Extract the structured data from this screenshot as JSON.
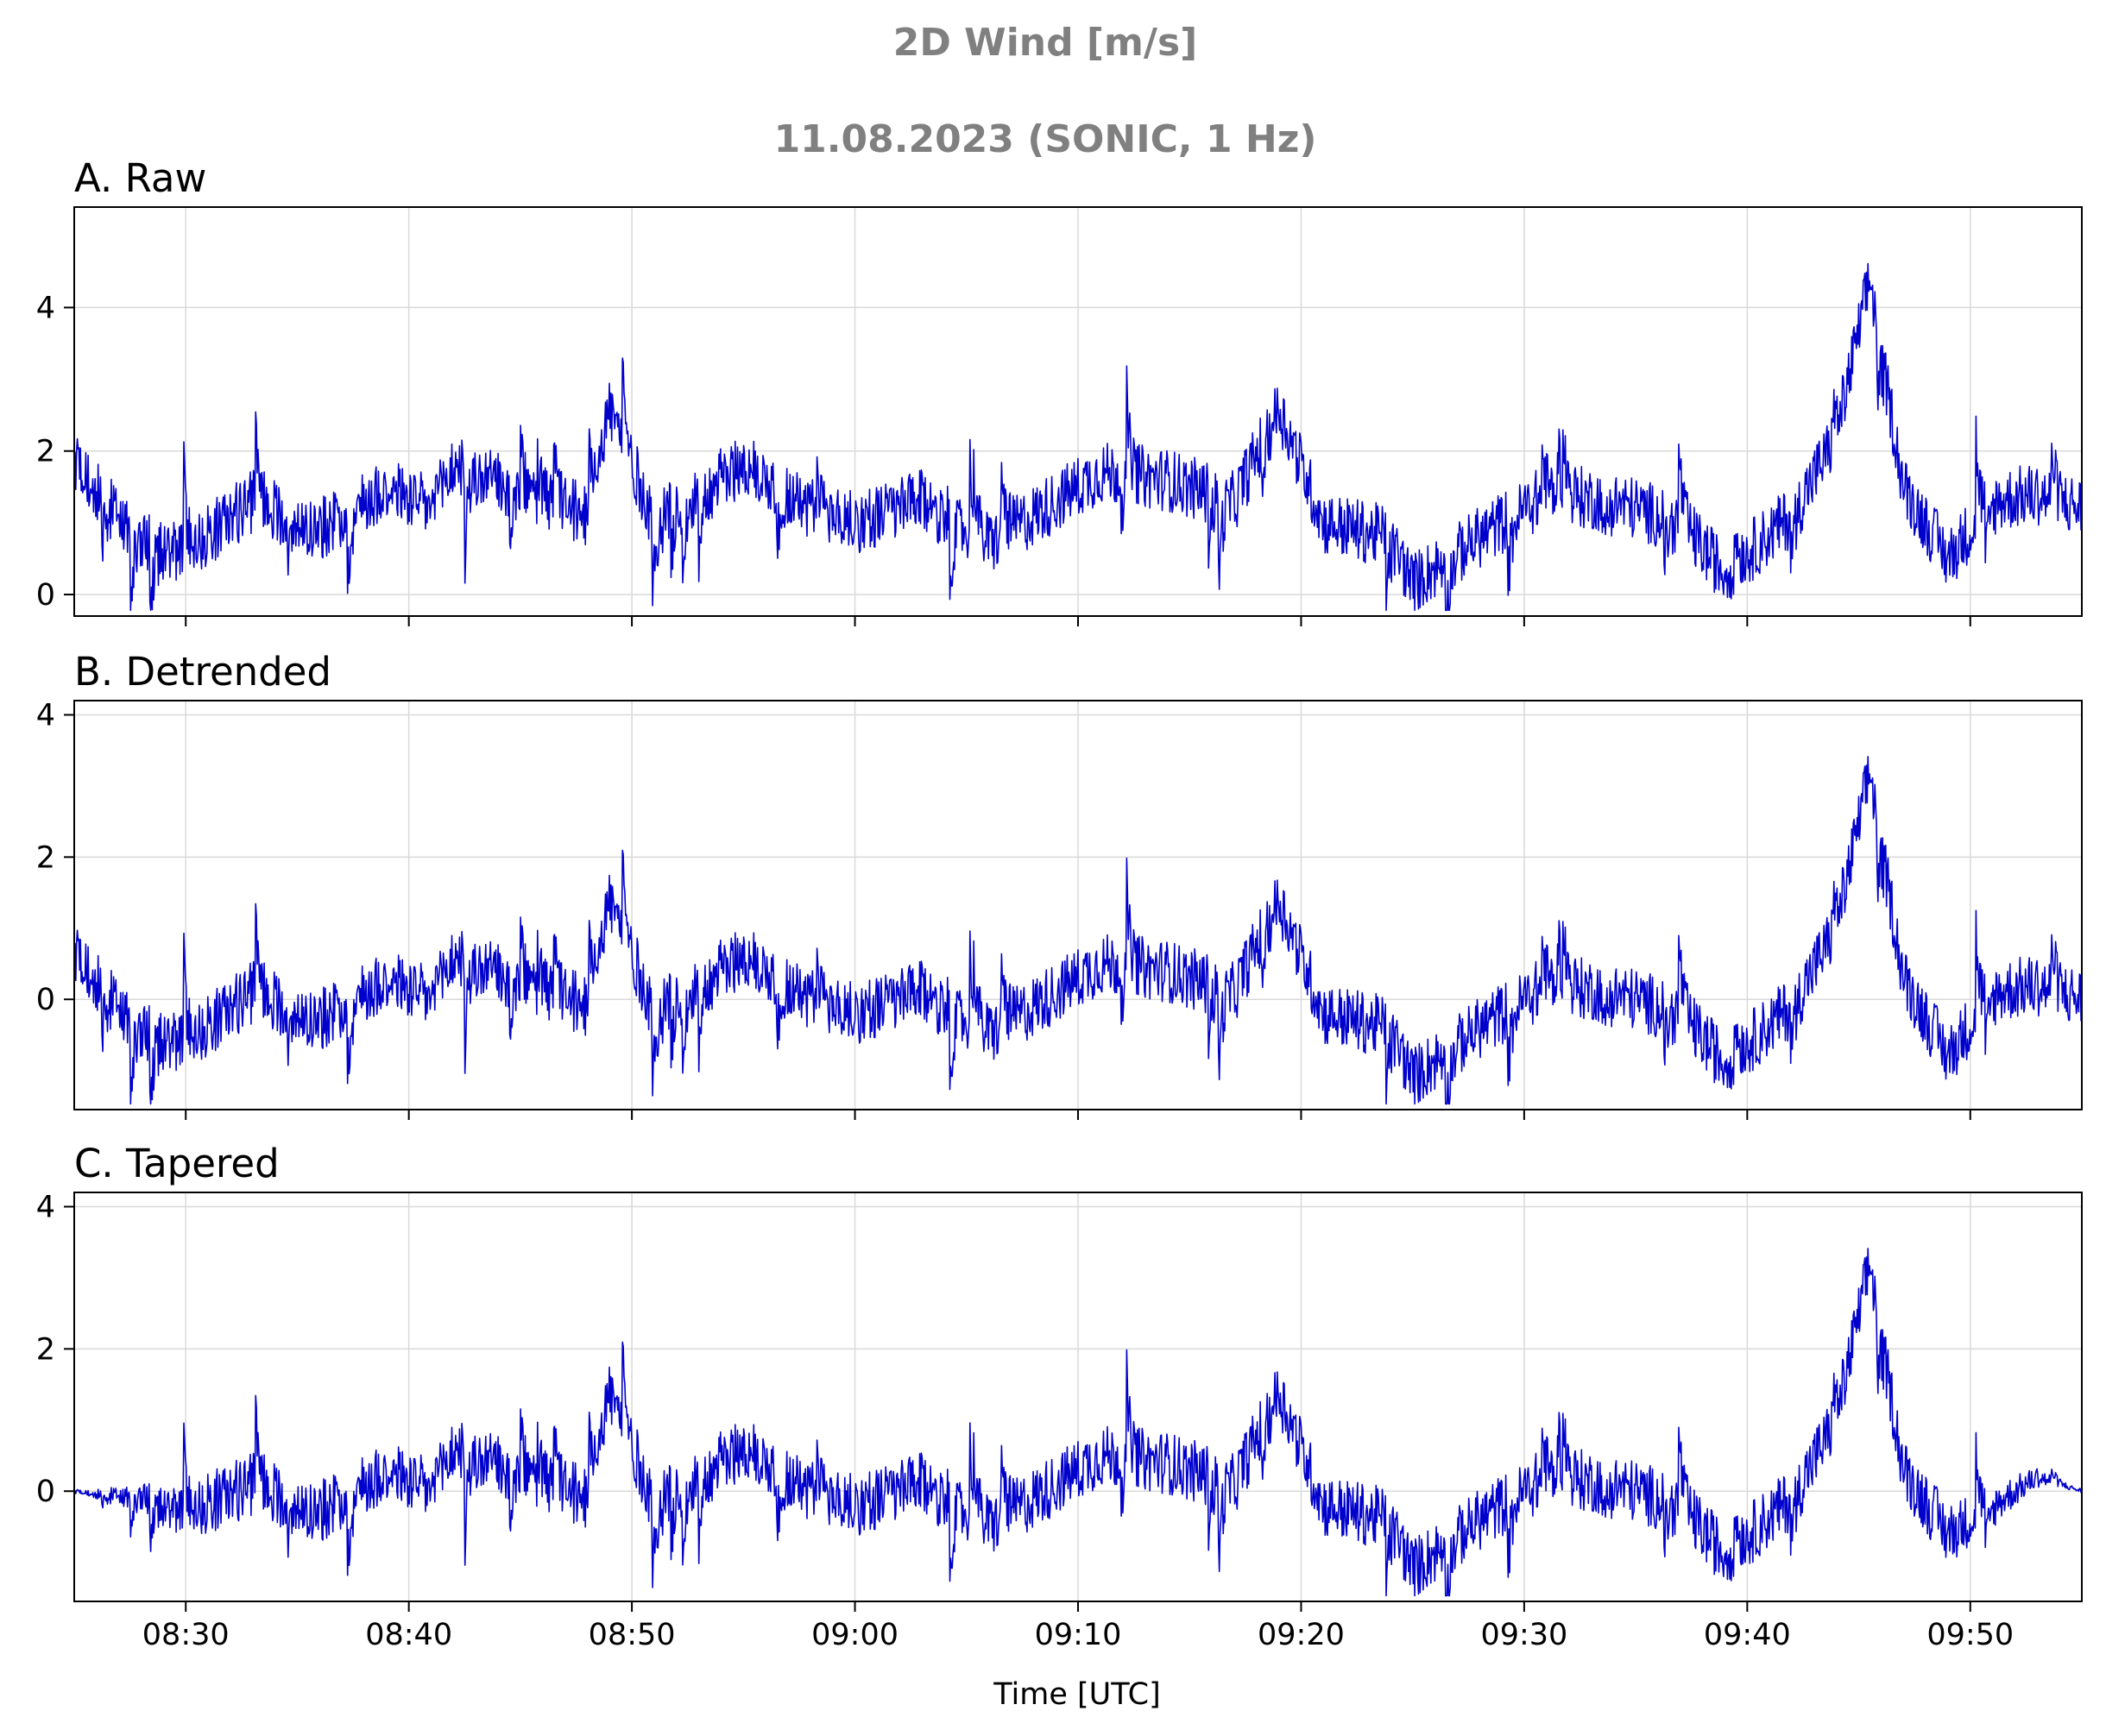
{
  "figure": {
    "title_line1": "2D Wind [m/s]",
    "title_line2": "11.08.2023 (SONIC, 1 Hz)",
    "xlabel": "Time [UTC]",
    "line_color": "#0000cc"
  },
  "chart_data": [
    {
      "type": "line",
      "title": "A. Raw",
      "x_ticks": [
        "08:30",
        "08:40",
        "08:50",
        "09:00",
        "09:10",
        "09:20",
        "09:30",
        "09:40",
        "09:50"
      ],
      "ylim": [
        -0.3,
        5.4
      ],
      "y_ticks": [
        0,
        2,
        4
      ],
      "grid": true,
      "x": [
        "08:25",
        "08:28",
        "08:30",
        "08:33",
        "08:36",
        "08:39",
        "08:41",
        "08:42",
        "08:45",
        "08:48",
        "08:49",
        "08:51",
        "08:55",
        "08:58",
        "09:00",
        "09:03",
        "09:06",
        "09:09",
        "09:11",
        "09:14",
        "09:17",
        "09:19",
        "09:21",
        "09:24",
        "09:25",
        "09:28",
        "09:31",
        "09:34",
        "09:37",
        "09:39",
        "09:42",
        "09:44",
        "09:45.5",
        "09:47",
        "09:49",
        "09:51",
        "09:53",
        "09:55"
      ],
      "series": [
        {
          "values": [
            1.9,
            0.7,
            0.6,
            1.3,
            0.9,
            1.5,
            1.2,
            1.8,
            1.4,
            1.1,
            2.6,
            1.0,
            1.8,
            1.2,
            1.0,
            1.3,
            0.7,
            1.3,
            1.7,
            1.6,
            1.3,
            2.6,
            1.0,
            0.8,
            0.15,
            0.8,
            1.4,
            1.3,
            1.0,
            0.3,
            1.1,
            2.2,
            4.4,
            1.5,
            0.5,
            1.3,
            1.4,
            1.2
          ]
        }
      ]
    },
    {
      "type": "line",
      "title": "B. Detrended",
      "x_ticks": [
        "08:30",
        "08:40",
        "08:50",
        "09:00",
        "09:10",
        "09:20",
        "09:30",
        "09:40",
        "09:50"
      ],
      "ylim": [
        -1.55,
        4.2
      ],
      "y_ticks": [
        0,
        2,
        4
      ],
      "grid": true,
      "x": [
        "08:25",
        "08:28",
        "08:30",
        "08:33",
        "08:36",
        "08:39",
        "08:41",
        "08:42",
        "08:45",
        "08:48",
        "08:49",
        "08:51",
        "08:55",
        "08:58",
        "09:00",
        "09:03",
        "09:06",
        "09:09",
        "09:11",
        "09:14",
        "09:17",
        "09:19",
        "09:21",
        "09:24",
        "09:25",
        "09:28",
        "09:31",
        "09:34",
        "09:37",
        "09:39",
        "09:42",
        "09:44",
        "09:45.5",
        "09:47",
        "09:49",
        "09:51",
        "09:53",
        "09:55"
      ],
      "series": [
        {
          "values": [
            0.7,
            -0.5,
            -0.6,
            0.1,
            -0.3,
            0.3,
            0.0,
            0.6,
            0.2,
            -0.1,
            1.4,
            -0.2,
            0.6,
            0.0,
            -0.2,
            0.1,
            -0.5,
            0.1,
            0.5,
            0.4,
            0.1,
            1.4,
            -0.2,
            -0.4,
            -1.1,
            -0.4,
            0.2,
            0.1,
            -0.2,
            -0.9,
            -0.1,
            1.0,
            3.2,
            0.3,
            -0.8,
            0.1,
            0.2,
            0.0
          ]
        }
      ]
    },
    {
      "type": "line",
      "title": "C. Tapered",
      "x_ticks": [
        "08:30",
        "08:40",
        "08:50",
        "09:00",
        "09:10",
        "09:20",
        "09:30",
        "09:40",
        "09:50"
      ],
      "ylim": [
        -1.55,
        4.2
      ],
      "y_ticks": [
        0,
        2,
        4
      ],
      "grid": true,
      "x": [
        "08:25",
        "08:28",
        "08:30",
        "08:33",
        "08:36",
        "08:39",
        "08:41",
        "08:42",
        "08:45",
        "08:48",
        "08:49",
        "08:51",
        "08:55",
        "08:58",
        "09:00",
        "09:03",
        "09:06",
        "09:09",
        "09:11",
        "09:14",
        "09:17",
        "09:19",
        "09:21",
        "09:24",
        "09:25",
        "09:28",
        "09:31",
        "09:34",
        "09:37",
        "09:39",
        "09:42",
        "09:44",
        "09:45.5",
        "09:47",
        "09:49",
        "09:51",
        "09:53",
        "09:55"
      ],
      "series": [
        {
          "values": [
            0.0,
            -0.1,
            -0.3,
            0.1,
            -0.3,
            0.3,
            0.0,
            0.6,
            0.2,
            -0.1,
            1.4,
            -0.2,
            0.6,
            0.0,
            -0.2,
            0.1,
            -0.5,
            0.1,
            0.5,
            0.4,
            0.1,
            1.4,
            -0.2,
            -0.4,
            -1.1,
            -0.4,
            0.2,
            0.1,
            -0.2,
            -0.9,
            -0.1,
            1.0,
            3.2,
            0.3,
            -0.6,
            -0.2,
            0.2,
            0.0
          ]
        }
      ]
    }
  ]
}
